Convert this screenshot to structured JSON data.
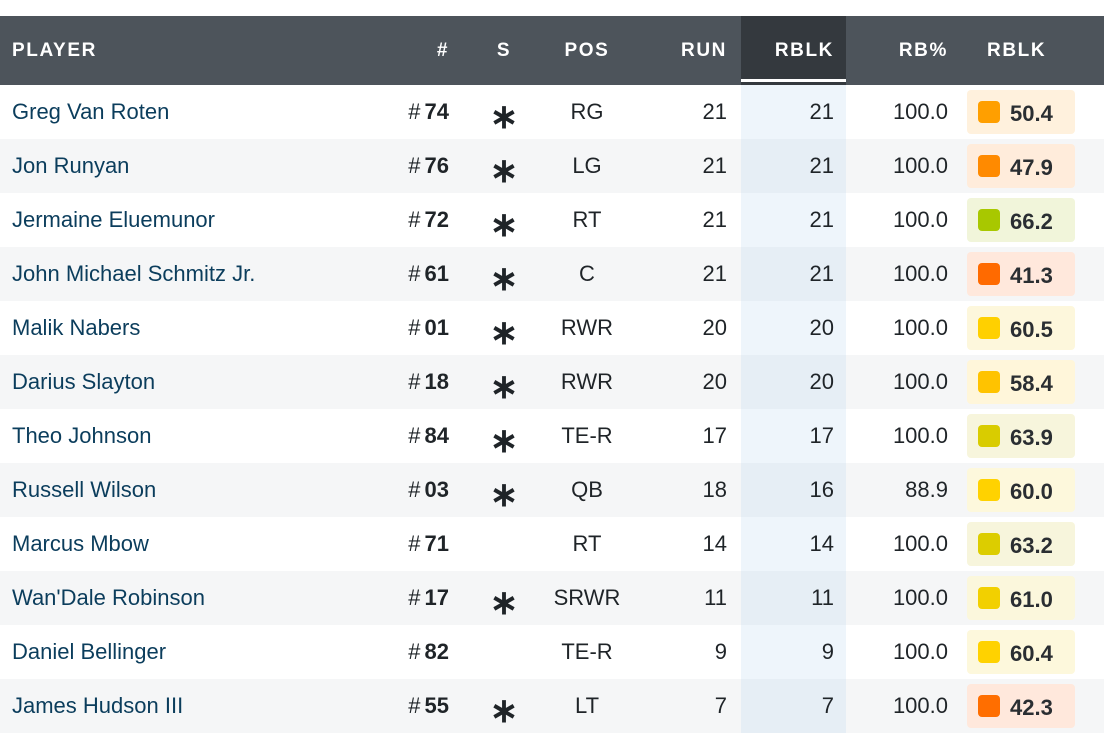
{
  "headers": {
    "player": "PLAYER",
    "num": "#",
    "s": "S",
    "pos": "POS",
    "run": "RUN",
    "rblk_sorted": "RBLK",
    "rb_pct": "RB%",
    "rblk_grade": "RBLK"
  },
  "rows": [
    {
      "name": "Greg Van Roten",
      "hash": "#",
      "number": "74",
      "starter": "∗",
      "pos": "RG",
      "run": "21",
      "rblk": "21",
      "rb_pct": "100.0",
      "grade": "50.4",
      "grade_color": "#ff9f00",
      "grade_bg": "#fff1dd"
    },
    {
      "name": "Jon Runyan",
      "hash": "#",
      "number": "76",
      "starter": "∗",
      "pos": "LG",
      "run": "21",
      "rblk": "21",
      "rb_pct": "100.0",
      "grade": "47.9",
      "grade_color": "#ff8a00",
      "grade_bg": "#ffecdb"
    },
    {
      "name": "Jermaine Eluemunor",
      "hash": "#",
      "number": "72",
      "starter": "∗",
      "pos": "RT",
      "run": "21",
      "rblk": "21",
      "rb_pct": "100.0",
      "grade": "66.2",
      "grade_color": "#a8c800",
      "grade_bg": "#f1f5da"
    },
    {
      "name": "John Michael Schmitz Jr.",
      "hash": "#",
      "number": "61",
      "starter": "∗",
      "pos": "C",
      "run": "21",
      "rblk": "21",
      "rb_pct": "100.0",
      "grade": "41.3",
      "grade_color": "#ff6a00",
      "grade_bg": "#ffe8dc"
    },
    {
      "name": "Malik Nabers",
      "hash": "#",
      "number": "01",
      "starter": "∗",
      "pos": "RWR",
      "run": "20",
      "rblk": "20",
      "rb_pct": "100.0",
      "grade": "60.5",
      "grade_color": "#ffd000",
      "grade_bg": "#fdf7dc"
    },
    {
      "name": "Darius Slayton",
      "hash": "#",
      "number": "18",
      "starter": "∗",
      "pos": "RWR",
      "run": "20",
      "rblk": "20",
      "rb_pct": "100.0",
      "grade": "58.4",
      "grade_color": "#ffc300",
      "grade_bg": "#fff6da"
    },
    {
      "name": "Theo Johnson",
      "hash": "#",
      "number": "84",
      "starter": "∗",
      "pos": "TE-R",
      "run": "17",
      "rblk": "17",
      "rb_pct": "100.0",
      "grade": "63.9",
      "grade_color": "#d9cc00",
      "grade_bg": "#f7f5dc"
    },
    {
      "name": "Russell Wilson",
      "hash": "#",
      "number": "03",
      "starter": "∗",
      "pos": "QB",
      "run": "18",
      "rblk": "16",
      "rb_pct": "88.9",
      "grade": "60.0",
      "grade_color": "#ffd200",
      "grade_bg": "#fdf8dc"
    },
    {
      "name": "Marcus Mbow",
      "hash": "#",
      "number": "71",
      "starter": "",
      "pos": "RT",
      "run": "14",
      "rblk": "14",
      "rb_pct": "100.0",
      "grade": "63.2",
      "grade_color": "#dccd00",
      "grade_bg": "#f7f5dc"
    },
    {
      "name": "Wan'Dale Robinson",
      "hash": "#",
      "number": "17",
      "starter": "∗",
      "pos": "SRWR",
      "run": "11",
      "rblk": "11",
      "rb_pct": "100.0",
      "grade": "61.0",
      "grade_color": "#f2d000",
      "grade_bg": "#fbf7dc"
    },
    {
      "name": "Daniel Bellinger",
      "hash": "#",
      "number": "82",
      "starter": "",
      "pos": "TE-R",
      "run": "9",
      "rblk": "9",
      "rb_pct": "100.0",
      "grade": "60.4",
      "grade_color": "#ffd200",
      "grade_bg": "#fdf8dc"
    },
    {
      "name": "James Hudson III",
      "hash": "#",
      "number": "55",
      "starter": "∗",
      "pos": "LT",
      "run": "7",
      "rblk": "7",
      "rb_pct": "100.0",
      "grade": "42.3",
      "grade_color": "#ff6e00",
      "grade_bg": "#ffe8dc"
    }
  ]
}
